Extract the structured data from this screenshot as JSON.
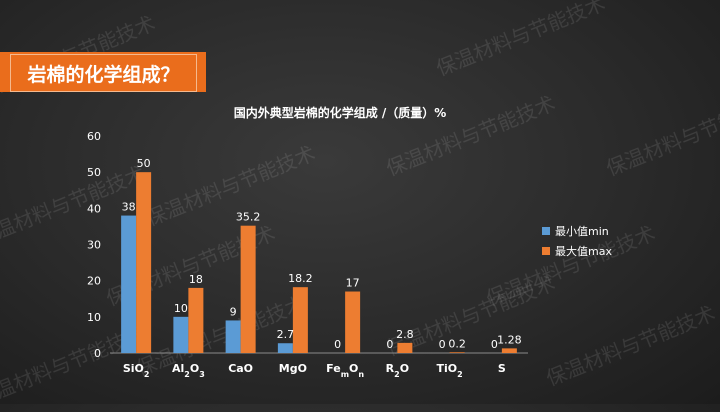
{
  "slide": {
    "title": "岩棉的化学组成？",
    "watermark": "保温材料与节能技术",
    "accent_color": "#ea6d1c"
  },
  "chart_data": {
    "type": "bar",
    "title": "国内外典型岩棉的化学组成 /（质量）%",
    "categories": [
      {
        "base": "SiO",
        "sub": "2",
        "rest": ""
      },
      {
        "base": "Al",
        "sub": "2",
        "rest": "O",
        "sub2": "3"
      },
      {
        "base": "CaO",
        "sub": "",
        "rest": ""
      },
      {
        "base": "MgO",
        "sub": "",
        "rest": ""
      },
      {
        "base": "Fe",
        "sub": "m",
        "rest": "O",
        "sub2": "n"
      },
      {
        "base": "R",
        "sub": "2",
        "rest": "O"
      },
      {
        "base": "TiO",
        "sub": "2",
        "rest": ""
      },
      {
        "base": "S",
        "sub": "",
        "rest": ""
      }
    ],
    "series": [
      {
        "name": "最小值min",
        "color": "#5b9bd5",
        "values": [
          38,
          10,
          9,
          2.7,
          0,
          0,
          0,
          0
        ]
      },
      {
        "name": "最大值max",
        "color": "#ed7d31",
        "values": [
          50,
          18,
          35.2,
          18.2,
          17,
          2.8,
          0.2,
          1.28
        ]
      }
    ],
    "ylim": [
      0,
      60
    ],
    "yticks": [
      0,
      10,
      20,
      30,
      40,
      50,
      60
    ],
    "legend_position": "right",
    "grid": false
  }
}
